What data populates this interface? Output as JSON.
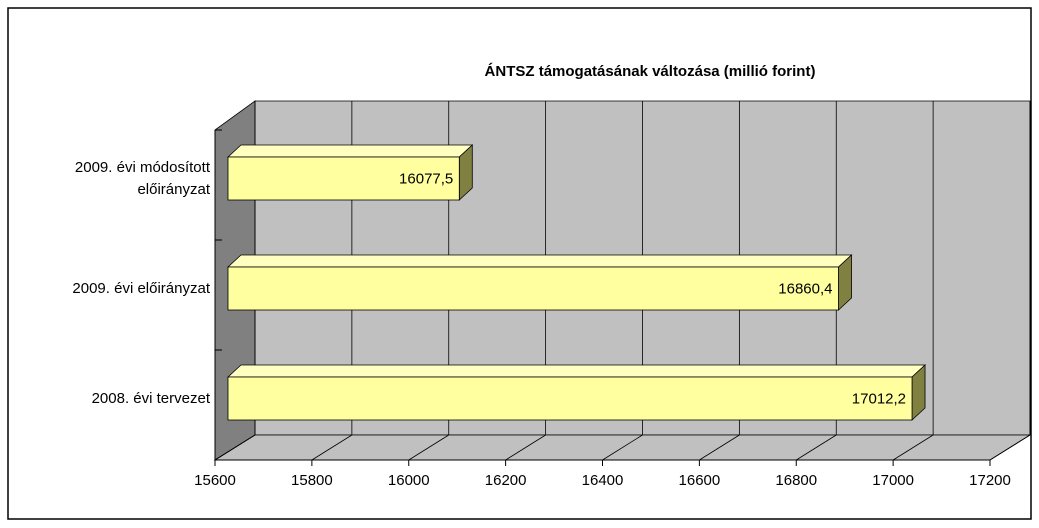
{
  "chart_data": {
    "type": "bar3d",
    "orientation": "horizontal",
    "title": "ÁNTSZ támogatásának változása (millió forint)",
    "categories": [
      "2009. évi módosított előirányzat",
      "2009. évi előirányzat",
      "2008. évi tervezet"
    ],
    "values": [
      16077.5,
      16860.4,
      17012.2
    ],
    "value_labels": [
      "16077,5",
      "16860,4",
      "17012,2"
    ],
    "color": "#ffffa0",
    "xlim": [
      15600,
      17200
    ],
    "xticks": [
      15600,
      15800,
      16000,
      16200,
      16400,
      16600,
      16800,
      17000,
      17200
    ],
    "grid": true
  }
}
